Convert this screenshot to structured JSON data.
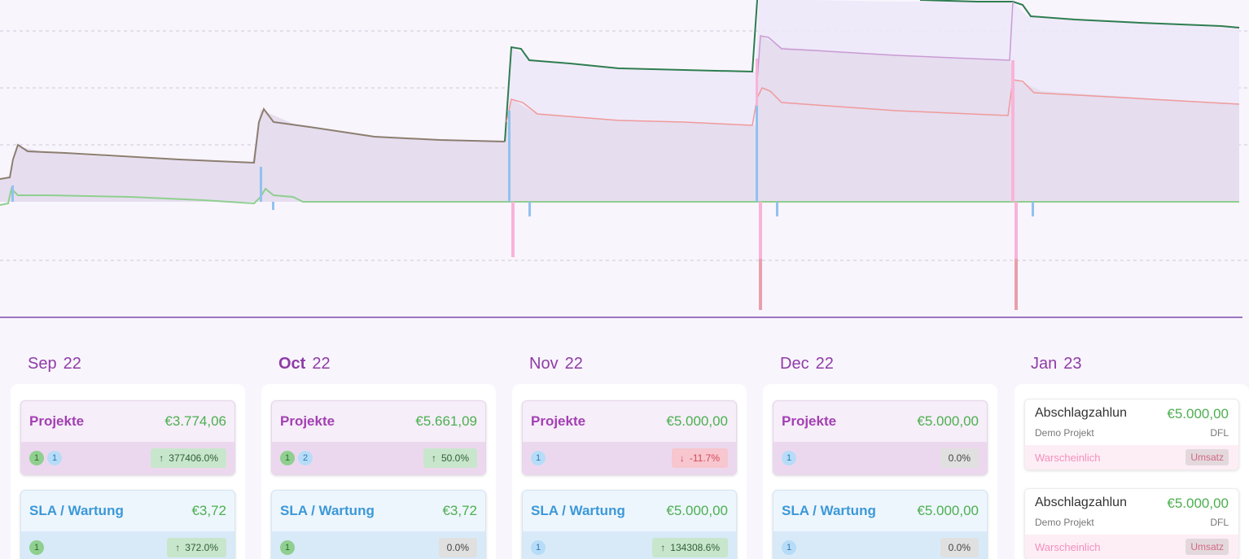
{
  "colors": {
    "accent": "#8e3ca6",
    "project_line": "#2e7d4f",
    "stack_line": "#8b7e6f",
    "green_line": "#8fcf8f",
    "red_line": "#ef9a9a",
    "blue_bar": "#90c2ef",
    "pink_bar": "#f8b3d9",
    "baseline": "#7b4bab"
  },
  "months": [
    {
      "month": "Sep",
      "year": "22",
      "bold": false
    },
    {
      "month": "Oct",
      "year": "22",
      "bold": true
    },
    {
      "month": "Nov",
      "year": "22",
      "bold": false
    },
    {
      "month": "Dec",
      "year": "22",
      "bold": false
    },
    {
      "month": "Jan",
      "year": "23",
      "bold": false
    }
  ],
  "columns": [
    {
      "projekte": {
        "title": "Projekte",
        "amount": "€3.774,06",
        "badges": [
          {
            "n": "1",
            "c": "green"
          },
          {
            "n": "1",
            "c": "blue"
          }
        ],
        "trend": {
          "dir": "up",
          "arrow": "↑",
          "text": "377406.0%"
        }
      },
      "sla": {
        "title": "SLA / Wartung",
        "amount": "€3,72",
        "badges": [
          {
            "n": "1",
            "c": "green"
          }
        ],
        "trend": {
          "dir": "up",
          "arrow": "↑",
          "text": "372.0%"
        }
      }
    },
    {
      "projekte": {
        "title": "Projekte",
        "amount": "€5.661,09",
        "badges": [
          {
            "n": "1",
            "c": "green"
          },
          {
            "n": "2",
            "c": "blue"
          }
        ],
        "trend": {
          "dir": "up",
          "arrow": "↑",
          "text": "50.0%"
        }
      },
      "sla": {
        "title": "SLA / Wartung",
        "amount": "€3,72",
        "badges": [
          {
            "n": "1",
            "c": "green"
          }
        ],
        "trend": {
          "dir": "flat",
          "arrow": "",
          "text": "0.0%"
        }
      }
    },
    {
      "projekte": {
        "title": "Projekte",
        "amount": "€5.000,00",
        "badges": [
          {
            "n": "1",
            "c": "blue"
          }
        ],
        "trend": {
          "dir": "down",
          "arrow": "↓",
          "text": "-11.7%"
        }
      },
      "sla": {
        "title": "SLA / Wartung",
        "amount": "€5.000,00",
        "badges": [
          {
            "n": "1",
            "c": "blue"
          }
        ],
        "trend": {
          "dir": "up",
          "arrow": "↑",
          "text": "134308.6%"
        }
      }
    },
    {
      "projekte": {
        "title": "Projekte",
        "amount": "€5.000,00",
        "badges": [
          {
            "n": "1",
            "c": "blue"
          }
        ],
        "trend": {
          "dir": "flat",
          "arrow": "",
          "text": "0.0%"
        }
      },
      "sla": {
        "title": "SLA / Wartung",
        "amount": "€5.000,00",
        "badges": [
          {
            "n": "1",
            "c": "blue"
          }
        ],
        "trend": {
          "dir": "flat",
          "arrow": "",
          "text": "0.0%"
        }
      }
    }
  ],
  "invoices": [
    {
      "name": "Abschlagzahlun",
      "amount": "€5.000,00",
      "project": "Demo Projekt",
      "code": "DFL",
      "status": "Warscheinlich",
      "tag": "Umsatz"
    },
    {
      "name": "Abschlagzahlun",
      "amount": "€5.000,00",
      "project": "Demo Projekt",
      "code": "DFL",
      "status": "Warscheinlich",
      "tag": "Umsatz"
    }
  ]
}
